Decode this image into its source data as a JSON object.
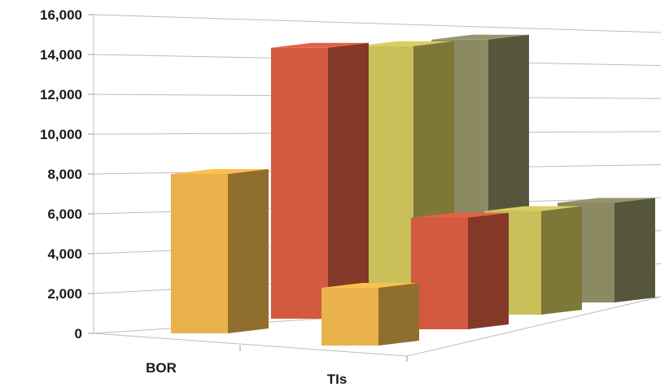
{
  "chart_data": {
    "type": "bar",
    "style": "3d-clustered-bar",
    "categories": [
      "BOR",
      "TIs"
    ],
    "y_ticks": [
      "0",
      "2,000",
      "4,000",
      "6,000",
      "8,000",
      "10,000",
      "12,000",
      "14,000",
      "16,000"
    ],
    "ylim": [
      0,
      16000
    ],
    "grid": true,
    "legend": "none",
    "series": [
      {
        "color": "#e9b24a",
        "values": [
          8000,
          2900
        ]
      },
      {
        "color": "#d35a40",
        "values": [
          13600,
          5600
        ]
      },
      {
        "color": "#c9c05a",
        "values": [
          13400,
          5200
        ]
      },
      {
        "color": "#8b8a62",
        "values": [
          13400,
          5000
        ]
      }
    ]
  }
}
